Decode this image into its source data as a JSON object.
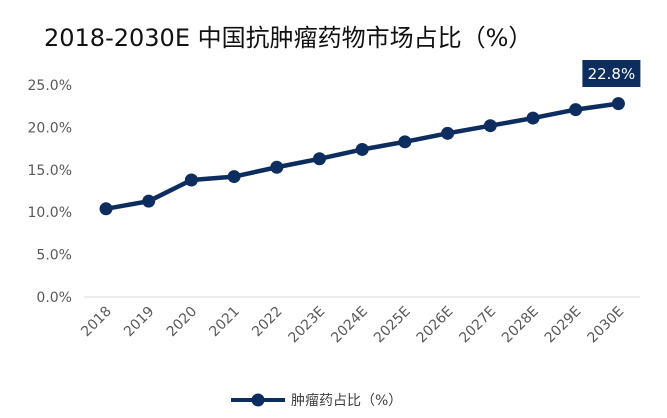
{
  "chart_data": {
    "type": "line",
    "title": "2018-2030E 中国抗肿瘤药物市场占比（%）",
    "categories": [
      "2018",
      "2019",
      "2020",
      "2021",
      "2022",
      "2023E",
      "2024E",
      "2025E",
      "2026E",
      "2027E",
      "2028E",
      "2029E",
      "2030E"
    ],
    "series": [
      {
        "name": "肿瘤药占比（%）",
        "values": [
          10.4,
          11.3,
          13.8,
          14.2,
          15.3,
          16.3,
          17.4,
          18.3,
          19.3,
          20.2,
          21.1,
          22.1,
          22.8
        ],
        "color": "#0d2d5e"
      }
    ],
    "yticks": [
      "0.0%",
      "5.0%",
      "10.0%",
      "15.0%",
      "20.0%",
      "25.0%"
    ],
    "ylim": [
      0,
      25
    ],
    "callout": {
      "label": "22.8%",
      "index": 12,
      "color": "#0d2d5e"
    },
    "grid": false,
    "legend": "bottom",
    "axis_color": "#d9d9d9"
  }
}
